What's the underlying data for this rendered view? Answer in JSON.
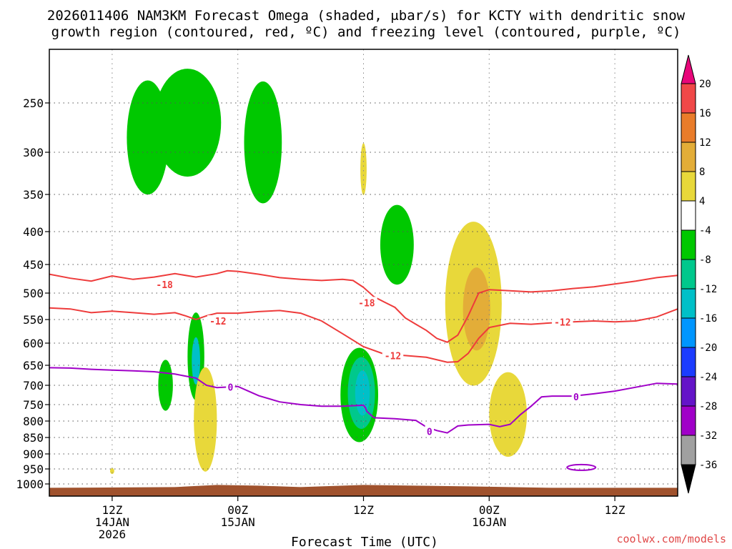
{
  "chart_data": {
    "type": "heatmap",
    "title_line1": "2026011406 NAM3KM Forecast Omega (shaded, μbar/s) for KCTY with dendritic snow",
    "title_line2": "growth region (contoured, red, ºC) and freezing level (contoured, purple, ºC)",
    "xlabel": "Forecast Time (UTC)",
    "credit": "coolwx.com/models",
    "x_unit": "forecast hour",
    "xlim": [
      0,
      60
    ],
    "x_ticks": [
      {
        "x": 6,
        "l1": "12Z",
        "l2": "14JAN",
        "l3": "2026"
      },
      {
        "x": 18,
        "l1": "00Z",
        "l2": "15JAN",
        "l3": ""
      },
      {
        "x": 30,
        "l1": "12Z",
        "l2": "",
        "l3": ""
      },
      {
        "x": 42,
        "l1": "00Z",
        "l2": "16JAN",
        "l3": ""
      },
      {
        "x": 54,
        "l1": "12Z",
        "l2": "",
        "l3": ""
      }
    ],
    "y_unit": "hPa",
    "y_ticks": [
      250,
      300,
      350,
      400,
      450,
      500,
      550,
      600,
      650,
      700,
      750,
      800,
      850,
      900,
      950,
      1000
    ],
    "colorbar": {
      "labels": [
        "20",
        "16",
        "12",
        "8",
        "4",
        "-4",
        "-8",
        "-12",
        "-16",
        "-20",
        "-24",
        "-28",
        "-32",
        "-36"
      ],
      "bins": [
        {
          "range": ">20",
          "color": "#e8067a"
        },
        {
          "range": "16 to 20",
          "color": "#f04848"
        },
        {
          "range": "12 to 16",
          "color": "#e97c2a"
        },
        {
          "range": "8 to 12",
          "color": "#e3ad38"
        },
        {
          "range": "4 to 8",
          "color": "#e8d83a"
        },
        {
          "range": "-4 to 4",
          "color": "#ffffff"
        },
        {
          "range": "-8 to -4",
          "color": "#00c800"
        },
        {
          "range": "-12 to -8",
          "color": "#00c88c"
        },
        {
          "range": "-16 to -12",
          "color": "#00c0c8"
        },
        {
          "range": "-20 to -16",
          "color": "#0096ff"
        },
        {
          "range": "-24 to -20",
          "color": "#1c3cff"
        },
        {
          "range": "-28 to -24",
          "color": "#6414c8"
        },
        {
          "range": "-32 to -28",
          "color": "#a000c8"
        },
        {
          "range": "-36 to -32",
          "color": "#a0a0a0"
        },
        {
          "range": "<-36",
          "color": "#000000"
        }
      ]
    },
    "contours": {
      "minus18": {
        "label": "-18",
        "color": "#ee3b3b",
        "label_points": [
          {
            "x": 11,
            "p": 485
          },
          {
            "x": 30.3,
            "p": 518
          }
        ],
        "points": [
          [
            0,
            467
          ],
          [
            2,
            474
          ],
          [
            4,
            479
          ],
          [
            6,
            470
          ],
          [
            8,
            476
          ],
          [
            10,
            472
          ],
          [
            12,
            466
          ],
          [
            14,
            472
          ],
          [
            16,
            466
          ],
          [
            17,
            461
          ],
          [
            18,
            462
          ],
          [
            20,
            467
          ],
          [
            22,
            473
          ],
          [
            24,
            476
          ],
          [
            26,
            478
          ],
          [
            28,
            476
          ],
          [
            29,
            478
          ],
          [
            30,
            490
          ],
          [
            31,
            507
          ],
          [
            32,
            517
          ],
          [
            33,
            527
          ],
          [
            34,
            547
          ],
          [
            35,
            560
          ],
          [
            36,
            573
          ],
          [
            37,
            590
          ],
          [
            38,
            598
          ],
          [
            39,
            583
          ],
          [
            40,
            543
          ],
          [
            41,
            500
          ],
          [
            42,
            494
          ],
          [
            44,
            496
          ],
          [
            46,
            498
          ],
          [
            48,
            496
          ],
          [
            50,
            492
          ],
          [
            52,
            489
          ],
          [
            54,
            484
          ],
          [
            56,
            479
          ],
          [
            58,
            473
          ],
          [
            60,
            469
          ]
        ]
      },
      "minus12": {
        "label": "-12",
        "color": "#ee3b3b",
        "label_points": [
          {
            "x": 16.1,
            "p": 553
          },
          {
            "x": 32.8,
            "p": 628
          },
          {
            "x": 49,
            "p": 555
          }
        ],
        "points": [
          [
            0,
            528
          ],
          [
            2,
            530
          ],
          [
            4,
            537
          ],
          [
            6,
            534
          ],
          [
            8,
            537
          ],
          [
            10,
            540
          ],
          [
            12,
            537
          ],
          [
            13,
            543
          ],
          [
            14,
            550
          ],
          [
            15,
            543
          ],
          [
            16,
            538
          ],
          [
            18,
            538
          ],
          [
            20,
            535
          ],
          [
            22,
            533
          ],
          [
            24,
            538
          ],
          [
            26,
            553
          ],
          [
            28,
            580
          ],
          [
            30,
            608
          ],
          [
            32,
            625
          ],
          [
            34,
            628
          ],
          [
            36,
            632
          ],
          [
            38,
            643
          ],
          [
            39,
            642
          ],
          [
            40,
            623
          ],
          [
            41,
            590
          ],
          [
            42,
            567
          ],
          [
            44,
            558
          ],
          [
            46,
            560
          ],
          [
            48,
            557
          ],
          [
            50,
            555
          ],
          [
            52,
            553
          ],
          [
            54,
            555
          ],
          [
            56,
            553
          ],
          [
            58,
            545
          ],
          [
            60,
            530
          ]
        ]
      },
      "zero": {
        "label": "0",
        "color": "#a000c8",
        "label_points": [
          {
            "x": 17.3,
            "p": 705
          },
          {
            "x": 36.3,
            "p": 831
          },
          {
            "x": 50.3,
            "p": 730
          }
        ],
        "points": [
          [
            0,
            656
          ],
          [
            2,
            657
          ],
          [
            4,
            660
          ],
          [
            6,
            662
          ],
          [
            8,
            664
          ],
          [
            10,
            666
          ],
          [
            12,
            672
          ],
          [
            14,
            682
          ],
          [
            15,
            700
          ],
          [
            16,
            706
          ],
          [
            18,
            703
          ],
          [
            19,
            715
          ],
          [
            20,
            727
          ],
          [
            22,
            743
          ],
          [
            24,
            750
          ],
          [
            26,
            755
          ],
          [
            28,
            755
          ],
          [
            30,
            752
          ],
          [
            30.2,
            760
          ],
          [
            30.3,
            770
          ],
          [
            31,
            790
          ],
          [
            33,
            793
          ],
          [
            35,
            798
          ],
          [
            36,
            818
          ],
          [
            37,
            829
          ],
          [
            38,
            836
          ],
          [
            39,
            815
          ],
          [
            40,
            812
          ],
          [
            42,
            810
          ],
          [
            43,
            817
          ],
          [
            44,
            810
          ],
          [
            45,
            780
          ],
          [
            46,
            755
          ],
          [
            47,
            730
          ],
          [
            48,
            728
          ],
          [
            50,
            728
          ],
          [
            52,
            722
          ],
          [
            54,
            715
          ],
          [
            56,
            705
          ],
          [
            58,
            695
          ],
          [
            60,
            697
          ]
        ]
      },
      "zero_small": {
        "center": {
          "x": 50.8,
          "p": 945
        },
        "color": "#a000c8"
      }
    },
    "omega_areas": [
      {
        "type": "ellipse",
        "cx": 9.4,
        "p_center": 285,
        "p_half": 60,
        "rx_hours": 2.0,
        "omega_range": "-8 to -4"
      },
      {
        "type": "ellipse",
        "cx": 13.2,
        "p_center": 270,
        "p_half": 55,
        "rx_hours": 3.2,
        "omega_range": "-8 to -4"
      },
      {
        "type": "ellipse",
        "cx": 20.4,
        "p_center": 290,
        "p_half": 65,
        "rx_hours": 1.8,
        "omega_range": "-8 to -4"
      },
      {
        "type": "ellipse",
        "cx": 33.2,
        "p_center": 420,
        "p_half": 60,
        "rx_hours": 1.6,
        "omega_range": "-8 to -4"
      },
      {
        "type": "ellipse",
        "cx": 29.6,
        "p_center": 725,
        "p_half": 125,
        "rx_hours": 1.8,
        "omega_range": "-8 to -4"
      },
      {
        "type": "ellipse",
        "cx": 29.8,
        "p_center": 720,
        "p_half": 95,
        "rx_hours": 1.3,
        "omega_range": "-12 to -8"
      },
      {
        "type": "ellipse",
        "cx": 29.9,
        "p_center": 720,
        "p_half": 60,
        "rx_hours": 0.7,
        "omega_range": "-16 to -12"
      },
      {
        "type": "ellipse",
        "cx": 14.0,
        "p_center": 630,
        "p_half": 100,
        "rx_hours": 0.8,
        "omega_range": "-8 to -4"
      },
      {
        "type": "ellipse",
        "cx": 14.0,
        "p_center": 640,
        "p_half": 55,
        "rx_hours": 0.4,
        "omega_range": "-16 to -12"
      },
      {
        "type": "ellipse",
        "cx": 11.1,
        "p_center": 700,
        "p_half": 65,
        "rx_hours": 0.7,
        "omega_range": "-8 to -4"
      },
      {
        "type": "ellipse",
        "cx": 14.9,
        "p_center": 795,
        "p_half": 150,
        "rx_hours": 1.1,
        "omega_range": "4 to 8"
      },
      {
        "type": "ellipse",
        "cx": 40.5,
        "p_center": 520,
        "p_half": 150,
        "rx_hours": 2.7,
        "omega_range": "4 to 8"
      },
      {
        "type": "ellipse",
        "cx": 40.8,
        "p_center": 530,
        "p_half": 80,
        "rx_hours": 1.3,
        "omega_range": "8 to 12"
      },
      {
        "type": "ellipse",
        "cx": 43.8,
        "p_center": 780,
        "p_half": 120,
        "rx_hours": 1.8,
        "omega_range": "4 to 8"
      },
      {
        "type": "ellipse",
        "cx": 30.0,
        "p_center": 320,
        "p_half": 30,
        "rx_hours": 0.3,
        "omega_range": "4 to 8"
      },
      {
        "type": "ellipse",
        "cx": 6.0,
        "p_center": 957,
        "p_half": 10,
        "rx_hours": 0.2,
        "omega_range": "4 to 8"
      }
    ],
    "ground": {
      "from_p": 1010,
      "color": "#a0522d"
    }
  }
}
